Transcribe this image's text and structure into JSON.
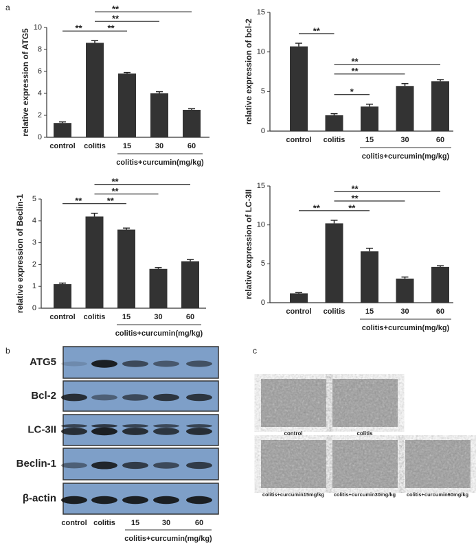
{
  "chart_data": [
    {
      "type": "bar",
      "y_label": "relative expression of ATG5",
      "categories": [
        "control",
        "colitis",
        "15",
        "30",
        "60"
      ],
      "group_label": "colitis+curcumin(mg/kg)",
      "values": [
        1.3,
        8.6,
        5.8,
        4.0,
        2.5
      ],
      "errors": [
        0.1,
        0.2,
        0.1,
        0.15,
        0.1
      ],
      "color": "#333333",
      "ylim": [
        0,
        10
      ],
      "yticks": [
        0,
        2,
        4,
        6,
        8,
        10
      ],
      "annotations": [
        {
          "text": "**",
          "between": [
            0,
            1
          ]
        },
        {
          "text": "**",
          "between": [
            1,
            2
          ]
        },
        {
          "text": "**",
          "between": [
            1,
            3
          ]
        },
        {
          "text": "**",
          "between": [
            1,
            4
          ]
        }
      ]
    },
    {
      "type": "bar",
      "y_label": "relative expression of bcl-2",
      "categories": [
        "control",
        "colitis",
        "15",
        "30",
        "60"
      ],
      "group_label": "colitis+curcumin(mg/kg)",
      "values": [
        10.7,
        2.0,
        3.1,
        5.7,
        6.3
      ],
      "errors": [
        0.4,
        0.2,
        0.3,
        0.3,
        0.2
      ],
      "color": "#333333",
      "ylim": [
        0,
        15
      ],
      "yticks": [
        0,
        5,
        10,
        15
      ],
      "annotations": [
        {
          "text": "**",
          "between": [
            0,
            1
          ]
        },
        {
          "text": "*",
          "between": [
            1,
            2
          ]
        },
        {
          "text": "**",
          "between": [
            1,
            3
          ]
        },
        {
          "text": "**",
          "between": [
            1,
            4
          ]
        }
      ]
    },
    {
      "type": "bar",
      "y_label": "relative expression of Beclin-1",
      "categories": [
        "control",
        "colitis",
        "15",
        "30",
        "60"
      ],
      "group_label": "colitis+curcumin(mg/kg)",
      "values": [
        1.1,
        4.2,
        3.6,
        1.8,
        2.15
      ],
      "errors": [
        0.05,
        0.15,
        0.07,
        0.06,
        0.08
      ],
      "color": "#333333",
      "ylim": [
        0,
        5
      ],
      "yticks": [
        0,
        1,
        2,
        3,
        4,
        5
      ],
      "annotations": [
        {
          "text": "**",
          "between": [
            0,
            1
          ]
        },
        {
          "text": "**",
          "between": [
            1,
            2
          ]
        },
        {
          "text": "**",
          "between": [
            1,
            3
          ]
        },
        {
          "text": "**",
          "between": [
            1,
            4
          ]
        }
      ]
    },
    {
      "type": "bar",
      "y_label": "relative expression of LC-3II",
      "categories": [
        "control",
        "colitis",
        "15",
        "30",
        "60"
      ],
      "group_label": "colitis+curcumin(mg/kg)",
      "values": [
        1.2,
        10.2,
        6.6,
        3.1,
        4.6
      ],
      "errors": [
        0.1,
        0.4,
        0.4,
        0.2,
        0.15
      ],
      "color": "#333333",
      "ylim": [
        0,
        15
      ],
      "yticks": [
        0,
        5,
        10,
        15
      ],
      "annotations": [
        {
          "text": "**",
          "between": [
            0,
            1
          ]
        },
        {
          "text": "**",
          "between": [
            1,
            2
          ]
        },
        {
          "text": "**",
          "between": [
            1,
            3
          ]
        },
        {
          "text": "**",
          "between": [
            1,
            4
          ]
        }
      ]
    }
  ],
  "panel_labels": [
    "a",
    "b",
    "c"
  ],
  "blot": {
    "proteins": [
      "ATG5",
      "Bcl-2",
      "LC-3II",
      "Beclin-1",
      "β-actin"
    ],
    "lanes": [
      "control",
      "colitis",
      "15",
      "30",
      "60"
    ],
    "group_label": "colitis+curcumin(mg/kg)"
  },
  "micrographs": {
    "captions": [
      "control",
      "colitis",
      "colitis+curcumin15mg/kg",
      "colitis+curcumin30mg/kg",
      "colitis+curcumin60mg/kg"
    ]
  }
}
